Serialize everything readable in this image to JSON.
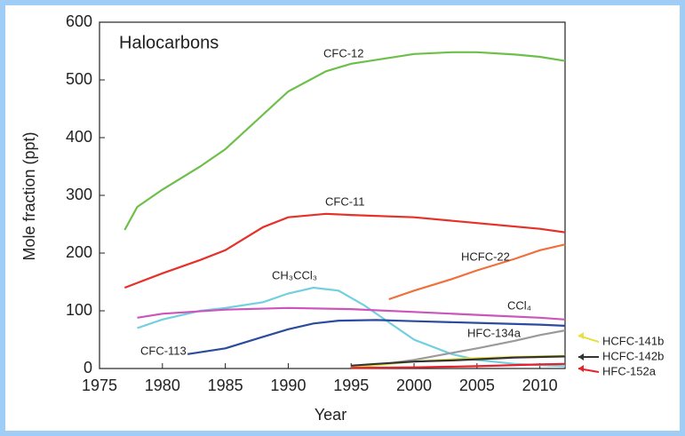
{
  "chart_data": {
    "type": "line",
    "title": "Halocarbons",
    "x_label": "Year",
    "y_label": "Mole fraction (ppt)",
    "xlim": [
      1975,
      2012
    ],
    "ylim": [
      0,
      600
    ],
    "xticks": [
      1975,
      1980,
      1985,
      1990,
      1995,
      2000,
      2005,
      2010
    ],
    "yticks": [
      0,
      100,
      200,
      300,
      400,
      500,
      600
    ],
    "grid": false,
    "series": [
      {
        "name": "CFC-12",
        "color": "#6cc04a",
        "x": [
          1977,
          1978,
          1980,
          1983,
          1985,
          1988,
          1990,
          1993,
          1995,
          2000,
          2003,
          2005,
          2008,
          2010,
          2012
        ],
        "values": [
          240,
          280,
          310,
          350,
          380,
          440,
          480,
          515,
          528,
          545,
          548,
          548,
          544,
          540,
          533
        ]
      },
      {
        "name": "CFC-11",
        "color": "#e53128",
        "x": [
          1977,
          1980,
          1983,
          1985,
          1988,
          1990,
          1993,
          1995,
          2000,
          2005,
          2010,
          2012
        ],
        "values": [
          140,
          165,
          188,
          205,
          245,
          262,
          268,
          266,
          262,
          252,
          242,
          236
        ]
      },
      {
        "name": "HCFC-22",
        "color": "#f0703c",
        "x": [
          1998,
          2000,
          2003,
          2005,
          2008,
          2010,
          2012
        ],
        "values": [
          120,
          135,
          155,
          170,
          190,
          205,
          215
        ]
      },
      {
        "name": "CH₃CCl₃",
        "color": "#72cfe0",
        "x": [
          1978,
          1980,
          1983,
          1985,
          1988,
          1990,
          1992,
          1994,
          1996,
          1998,
          2000,
          2003,
          2005,
          2008,
          2010,
          2012
        ],
        "values": [
          70,
          85,
          100,
          105,
          115,
          130,
          140,
          135,
          110,
          80,
          50,
          25,
          15,
          8,
          6,
          4
        ]
      },
      {
        "name": "CCl₄",
        "color": "#cc55bb",
        "x": [
          1978,
          1980,
          1985,
          1990,
          1995,
          2000,
          2005,
          2010,
          2012
        ],
        "values": [
          88,
          95,
          102,
          105,
          103,
          98,
          93,
          88,
          85
        ]
      },
      {
        "name": "CFC-113",
        "color": "#2b4c9e",
        "x": [
          1982,
          1985,
          1988,
          1990,
          1992,
          1994,
          1997,
          2000,
          2005,
          2010,
          2012
        ],
        "values": [
          25,
          35,
          55,
          68,
          78,
          83,
          84,
          82,
          79,
          76,
          74
        ]
      },
      {
        "name": "HFC-134a",
        "color": "#9a9a9a",
        "x": [
          1995,
          1997,
          2000,
          2003,
          2005,
          2008,
          2010,
          2012
        ],
        "values": [
          2,
          6,
          15,
          27,
          35,
          48,
          58,
          66
        ]
      },
      {
        "name": "HCFC-141b",
        "color": "#e8e040",
        "x": [
          1995,
          1997,
          2000,
          2003,
          2005,
          2008,
          2010,
          2012
        ],
        "values": [
          3,
          6,
          12,
          16,
          18,
          20,
          21,
          22
        ]
      },
      {
        "name": "HCFC-142b",
        "color": "#333333",
        "x": [
          1995,
          1997,
          2000,
          2003,
          2005,
          2008,
          2010,
          2012
        ],
        "values": [
          5,
          8,
          12,
          14,
          16,
          19,
          20,
          21
        ]
      },
      {
        "name": "HFC-152a",
        "color": "#e8202a",
        "x": [
          1995,
          2000,
          2005,
          2010,
          2012
        ],
        "values": [
          1,
          2,
          4,
          7,
          8
        ]
      }
    ]
  }
}
